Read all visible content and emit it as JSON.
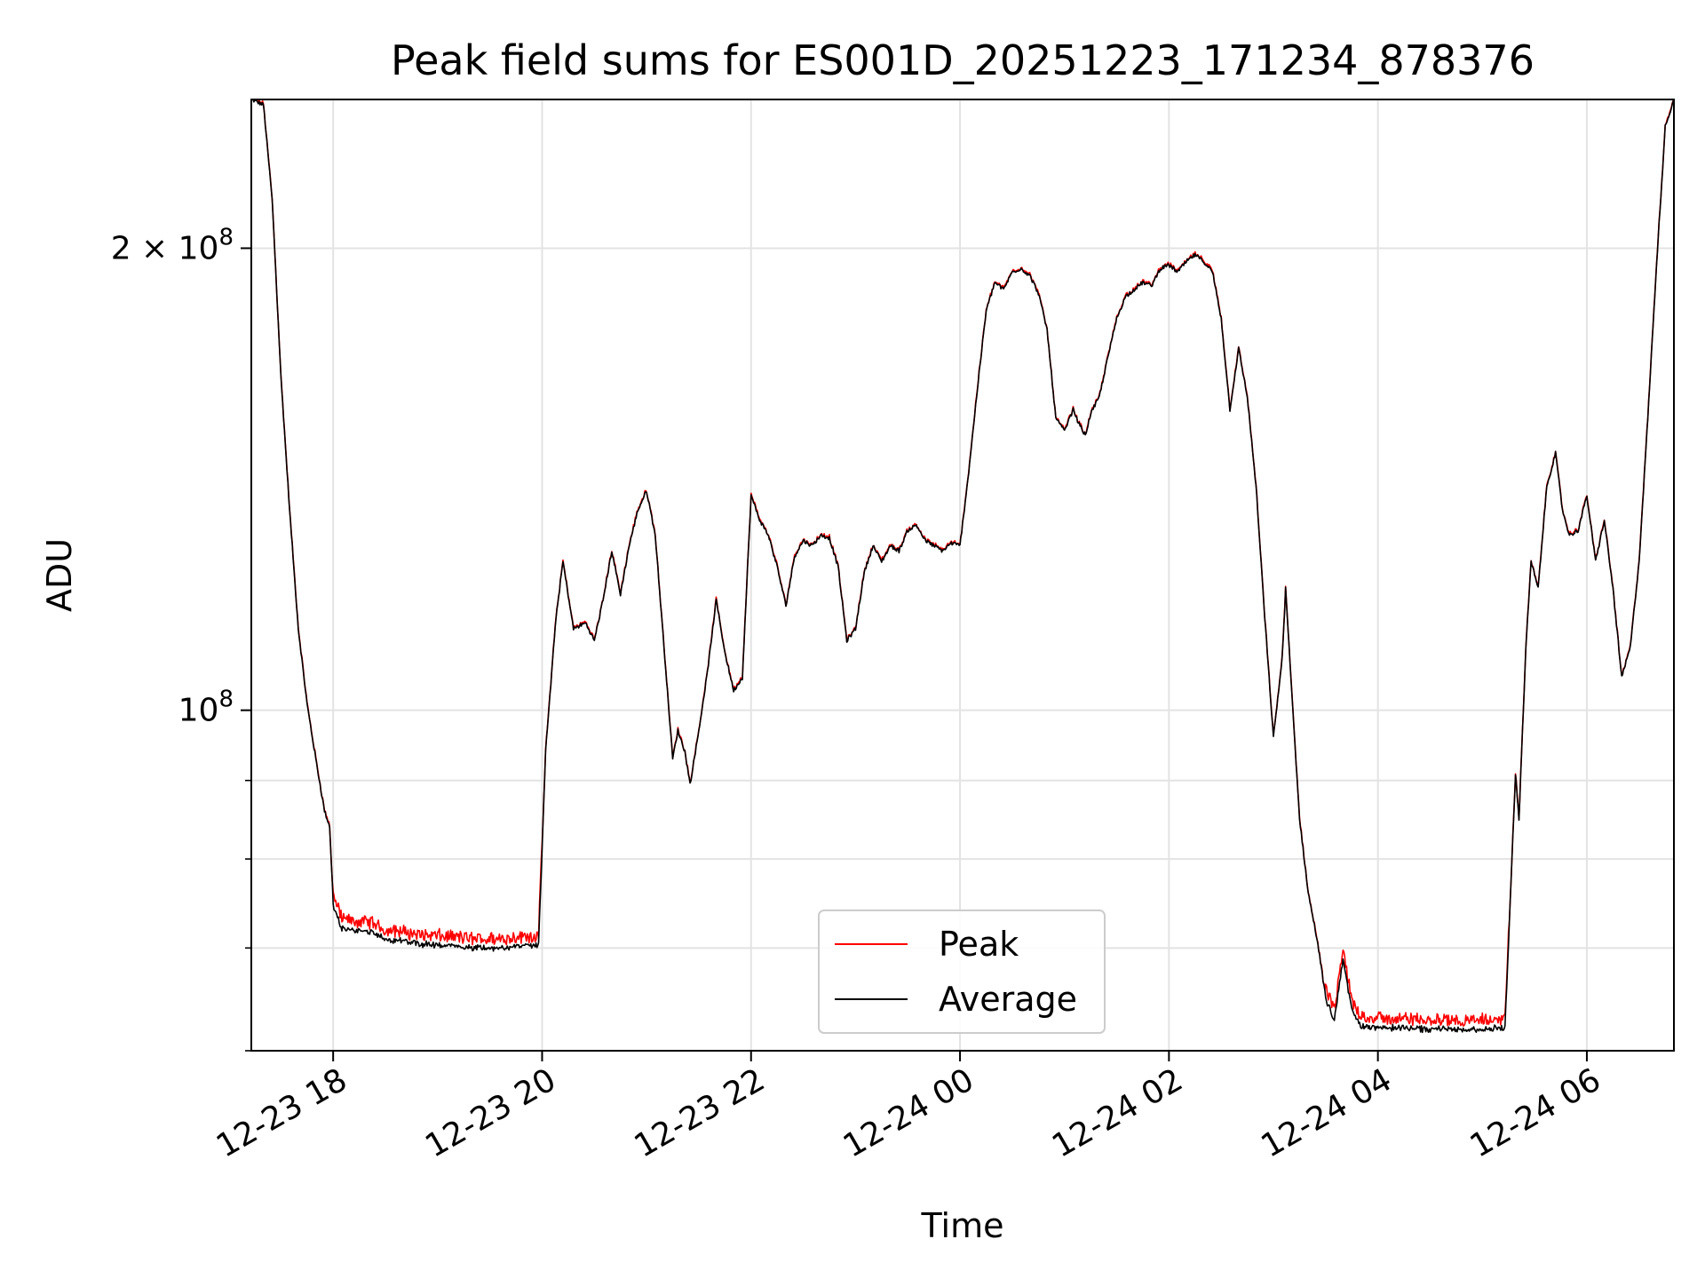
{
  "chart_data": {
    "type": "line",
    "title": "Peak field sums for ES001D_20251223_171234_878376",
    "xlabel": "Time",
    "ylabel": "ADU",
    "x_axis_type": "datetime",
    "x_ticks": [
      "12-23 18",
      "12-23 20",
      "12-23 22",
      "12-24 00",
      "12-24 02",
      "12-24 04",
      "12-24 06"
    ],
    "x_tick_times": [
      "2025-12-23 18:00",
      "2025-12-23 20:00",
      "2025-12-23 22:00",
      "2025-12-24 00:00",
      "2025-12-24 02:00",
      "2025-12-24 04:00",
      "2025-12-24 06:00"
    ],
    "xlim": [
      "2025-12-23 17:13",
      "2025-12-24 06:50"
    ],
    "y_scale": "log",
    "ylim": [
      60000000,
      250000000
    ],
    "y_major_ticks": [
      {
        "value": 100000000,
        "label": "10^8",
        "mantissa": "",
        "exponent": "8"
      },
      {
        "value": 200000000,
        "label": "2×10^8",
        "mantissa": "2 × ",
        "exponent": "8"
      }
    ],
    "y_minor_ticks": [
      60000000,
      70000000,
      80000000,
      90000000
    ],
    "grid": true,
    "legend_position": "lower-center",
    "series": [
      {
        "name": "Peak",
        "color": "#ff0000",
        "noisy_segments": [
          [
            "2025-12-23 18:00",
            "2025-12-23 20:00"
          ],
          [
            "2025-12-24 03:30",
            "2025-12-24 05:15"
          ]
        ],
        "points": [
          [
            "2025-12-23 17:13",
            250000000
          ],
          [
            "2025-12-23 17:20",
            248000000
          ],
          [
            "2025-12-23 17:25",
            215000000
          ],
          [
            "2025-12-23 17:30",
            165000000
          ],
          [
            "2025-12-23 17:35",
            135000000
          ],
          [
            "2025-12-23 17:40",
            113000000
          ],
          [
            "2025-12-23 17:45",
            101000000
          ],
          [
            "2025-12-23 17:50",
            93000000
          ],
          [
            "2025-12-23 17:55",
            86000000
          ],
          [
            "2025-12-23 17:58",
            84000000
          ],
          [
            "2025-12-23 18:00",
            75000000
          ],
          [
            "2025-12-23 18:05",
            72200000
          ],
          [
            "2025-12-23 18:20",
            72000000
          ],
          [
            "2025-12-23 18:30",
            71200000
          ],
          [
            "2025-12-23 18:45",
            70800000
          ],
          [
            "2025-12-23 19:00",
            70500000
          ],
          [
            "2025-12-23 19:20",
            70200000
          ],
          [
            "2025-12-23 19:40",
            70300000
          ],
          [
            "2025-12-23 19:58",
            70600000
          ],
          [
            "2025-12-23 20:02",
            94000000
          ],
          [
            "2025-12-23 20:08",
            115000000
          ],
          [
            "2025-12-23 20:12",
            125000000
          ],
          [
            "2025-12-23 20:18",
            113000000
          ],
          [
            "2025-12-23 20:25",
            114000000
          ],
          [
            "2025-12-23 20:30",
            111000000
          ],
          [
            "2025-12-23 20:35",
            118000000
          ],
          [
            "2025-12-23 20:40",
            127000000
          ],
          [
            "2025-12-23 20:45",
            119000000
          ],
          [
            "2025-12-23 20:50",
            128000000
          ],
          [
            "2025-12-23 20:55",
            135000000
          ],
          [
            "2025-12-23 21:00",
            139000000
          ],
          [
            "2025-12-23 21:05",
            130000000
          ],
          [
            "2025-12-23 21:10",
            110000000
          ],
          [
            "2025-12-23 21:15",
            93000000
          ],
          [
            "2025-12-23 21:18",
            97000000
          ],
          [
            "2025-12-23 21:22",
            94000000
          ],
          [
            "2025-12-23 21:25",
            89500000
          ],
          [
            "2025-12-23 21:30",
            97000000
          ],
          [
            "2025-12-23 21:35",
            106000000
          ],
          [
            "2025-12-23 21:40",
            118000000
          ],
          [
            "2025-12-23 21:45",
            109000000
          ],
          [
            "2025-12-23 21:50",
            103000000
          ],
          [
            "2025-12-23 21:55",
            105000000
          ],
          [
            "2025-12-23 22:00",
            138000000
          ],
          [
            "2025-12-23 22:05",
            133000000
          ],
          [
            "2025-12-23 22:10",
            130000000
          ],
          [
            "2025-12-23 22:15",
            124000000
          ],
          [
            "2025-12-23 22:20",
            117000000
          ],
          [
            "2025-12-23 22:25",
            126000000
          ],
          [
            "2025-12-23 22:30",
            129000000
          ],
          [
            "2025-12-23 22:35",
            128000000
          ],
          [
            "2025-12-23 22:40",
            130000000
          ],
          [
            "2025-12-23 22:45",
            129500000
          ],
          [
            "2025-12-23 22:50",
            124000000
          ],
          [
            "2025-12-23 22:55",
            111000000
          ],
          [
            "2025-12-23 23:00",
            113000000
          ],
          [
            "2025-12-23 23:05",
            123000000
          ],
          [
            "2025-12-23 23:10",
            128000000
          ],
          [
            "2025-12-23 23:15",
            125000000
          ],
          [
            "2025-12-23 23:20",
            128000000
          ],
          [
            "2025-12-23 23:25",
            127000000
          ],
          [
            "2025-12-23 23:30",
            131000000
          ],
          [
            "2025-12-23 23:35",
            132000000
          ],
          [
            "2025-12-23 23:40",
            129000000
          ],
          [
            "2025-12-23 23:45",
            128000000
          ],
          [
            "2025-12-23 23:50",
            127000000
          ],
          [
            "2025-12-23 23:55",
            128500000
          ],
          [
            "2025-12-24 00:00",
            128000000
          ],
          [
            "2025-12-24 00:05",
            143000000
          ],
          [
            "2025-12-24 00:10",
            162000000
          ],
          [
            "2025-12-24 00:15",
            182000000
          ],
          [
            "2025-12-24 00:20",
            190000000
          ],
          [
            "2025-12-24 00:25",
            188000000
          ],
          [
            "2025-12-24 00:30",
            193000000
          ],
          [
            "2025-12-24 00:35",
            194000000
          ],
          [
            "2025-12-24 00:40",
            192000000
          ],
          [
            "2025-12-24 00:45",
            187000000
          ],
          [
            "2025-12-24 00:50",
            177000000
          ],
          [
            "2025-12-24 00:55",
            155000000
          ],
          [
            "2025-12-24 01:00",
            152000000
          ],
          [
            "2025-12-24 01:05",
            157000000
          ],
          [
            "2025-12-24 01:08",
            154000000
          ],
          [
            "2025-12-24 01:12",
            151000000
          ],
          [
            "2025-12-24 01:15",
            156000000
          ],
          [
            "2025-12-24 01:20",
            160000000
          ],
          [
            "2025-12-24 01:25",
            170000000
          ],
          [
            "2025-12-24 01:30",
            180000000
          ],
          [
            "2025-12-24 01:35",
            186000000
          ],
          [
            "2025-12-24 01:40",
            188000000
          ],
          [
            "2025-12-24 01:45",
            190000000
          ],
          [
            "2025-12-24 01:50",
            189000000
          ],
          [
            "2025-12-24 01:55",
            194000000
          ],
          [
            "2025-12-24 02:00",
            195000000
          ],
          [
            "2025-12-24 02:05",
            193000000
          ],
          [
            "2025-12-24 02:10",
            196000000
          ],
          [
            "2025-12-24 02:15",
            198000000
          ],
          [
            "2025-12-24 02:20",
            196000000
          ],
          [
            "2025-12-24 02:25",
            193000000
          ],
          [
            "2025-12-24 02:30",
            180000000
          ],
          [
            "2025-12-24 02:35",
            157000000
          ],
          [
            "2025-12-24 02:40",
            172000000
          ],
          [
            "2025-12-24 02:45",
            160000000
          ],
          [
            "2025-12-24 02:50",
            140000000
          ],
          [
            "2025-12-24 02:55",
            115000000
          ],
          [
            "2025-12-24 03:00",
            96000000
          ],
          [
            "2025-12-24 03:05",
            108000000
          ],
          [
            "2025-12-24 03:07",
            120000000
          ],
          [
            "2025-12-24 03:10",
            105000000
          ],
          [
            "2025-12-24 03:15",
            85000000
          ],
          [
            "2025-12-24 03:20",
            76000000
          ],
          [
            "2025-12-24 03:25",
            71000000
          ],
          [
            "2025-12-24 03:30",
            65000000
          ],
          [
            "2025-12-24 03:35",
            63000000
          ],
          [
            "2025-12-24 03:40",
            69000000
          ],
          [
            "2025-12-24 03:45",
            64000000
          ],
          [
            "2025-12-24 03:50",
            62500000
          ],
          [
            "2025-12-24 04:00",
            62300000
          ],
          [
            "2025-12-24 04:30",
            62200000
          ],
          [
            "2025-12-24 05:00",
            62100000
          ],
          [
            "2025-12-24 05:13",
            62300000
          ],
          [
            "2025-12-24 05:17",
            80000000
          ],
          [
            "2025-12-24 05:19",
            91000000
          ],
          [
            "2025-12-24 05:21",
            85000000
          ],
          [
            "2025-12-24 05:25",
            110000000
          ],
          [
            "2025-12-24 05:28",
            125000000
          ],
          [
            "2025-12-24 05:32",
            120000000
          ],
          [
            "2025-12-24 05:37",
            140000000
          ],
          [
            "2025-12-24 05:42",
            147000000
          ],
          [
            "2025-12-24 05:46",
            135000000
          ],
          [
            "2025-12-24 05:50",
            130000000
          ],
          [
            "2025-12-24 05:55",
            131000000
          ],
          [
            "2025-12-24 06:00",
            138000000
          ],
          [
            "2025-12-24 06:05",
            125000000
          ],
          [
            "2025-12-24 06:10",
            133000000
          ],
          [
            "2025-12-24 06:15",
            120000000
          ],
          [
            "2025-12-24 06:20",
            105000000
          ],
          [
            "2025-12-24 06:25",
            110000000
          ],
          [
            "2025-12-24 06:30",
            125000000
          ],
          [
            "2025-12-24 06:35",
            155000000
          ],
          [
            "2025-12-24 06:40",
            195000000
          ],
          [
            "2025-12-24 06:45",
            240000000
          ],
          [
            "2025-12-24 06:50",
            250000000
          ]
        ]
      },
      {
        "name": "Average",
        "color": "#000000",
        "points": "same as Peak (slightly lower in noisy segments)"
      }
    ]
  }
}
